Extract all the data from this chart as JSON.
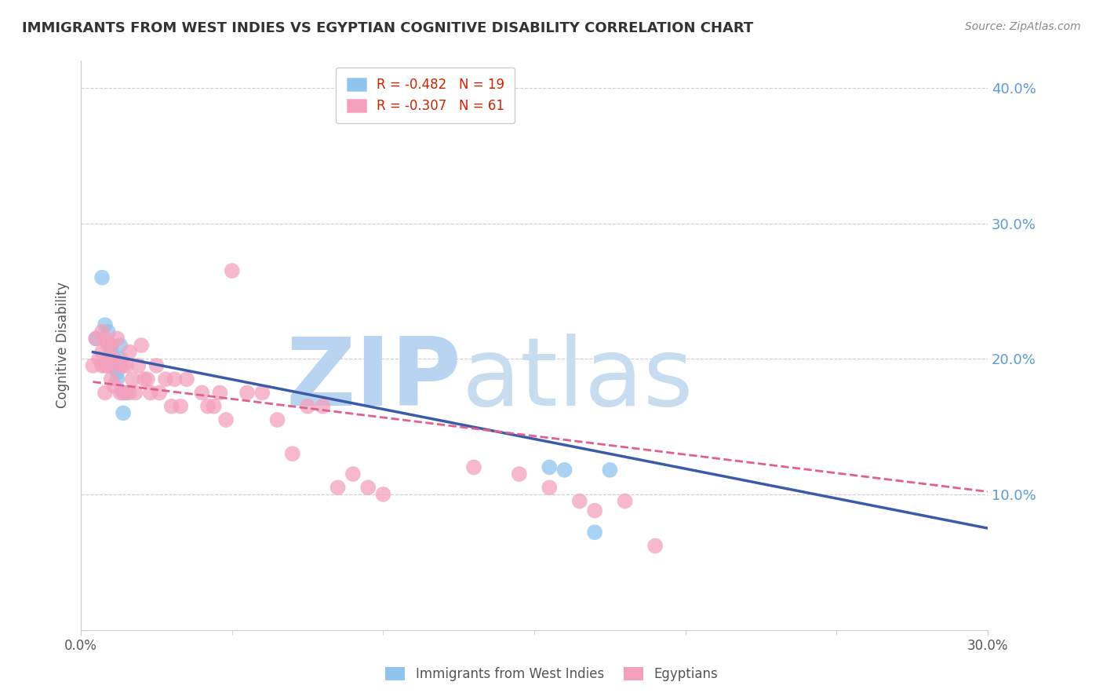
{
  "title": "IMMIGRANTS FROM WEST INDIES VS EGYPTIAN COGNITIVE DISABILITY CORRELATION CHART",
  "source": "Source: ZipAtlas.com",
  "ylabel": "Cognitive Disability",
  "legend_label1": "Immigrants from West Indies",
  "legend_label2": "Egyptians",
  "legend_r1": "R = -0.482",
  "legend_n1": "N = 19",
  "legend_r2": "R = -0.307",
  "legend_n2": "N = 61",
  "xlim": [
    0.0,
    0.3
  ],
  "ylim": [
    0.0,
    0.42
  ],
  "xtick_positions": [
    0.0,
    0.3
  ],
  "xtick_labels": [
    "0.0%",
    "30.0%"
  ],
  "yticks_right": [
    0.1,
    0.2,
    0.3,
    0.4
  ],
  "ytick_right_labels": [
    "10.0%",
    "20.0%",
    "30.0%",
    "40.0%"
  ],
  "color_blue": "#8EC4EE",
  "color_pink": "#F4A0BC",
  "color_blue_line": "#3A5BA8",
  "color_pink_line": "#E06090",
  "watermark_zip": "ZIP",
  "watermark_atlas": "atlas",
  "watermark_color_zip": "#B8D4F0",
  "watermark_color_atlas": "#C8DCF0",
  "background_color": "#FFFFFF",
  "blue_points_x": [
    0.005,
    0.007,
    0.008,
    0.009,
    0.01,
    0.01,
    0.011,
    0.011,
    0.012,
    0.012,
    0.013,
    0.013,
    0.014,
    0.014,
    0.015,
    0.155,
    0.16,
    0.17,
    0.175
  ],
  "blue_points_y": [
    0.215,
    0.26,
    0.225,
    0.22,
    0.21,
    0.205,
    0.2,
    0.195,
    0.19,
    0.185,
    0.21,
    0.2,
    0.175,
    0.16,
    0.175,
    0.12,
    0.118,
    0.072,
    0.118
  ],
  "pink_points_x": [
    0.004,
    0.005,
    0.006,
    0.007,
    0.007,
    0.007,
    0.008,
    0.008,
    0.008,
    0.009,
    0.009,
    0.01,
    0.01,
    0.01,
    0.011,
    0.011,
    0.012,
    0.013,
    0.013,
    0.014,
    0.014,
    0.015,
    0.016,
    0.016,
    0.017,
    0.018,
    0.019,
    0.02,
    0.021,
    0.022,
    0.023,
    0.025,
    0.026,
    0.028,
    0.03,
    0.031,
    0.033,
    0.035,
    0.04,
    0.042,
    0.044,
    0.046,
    0.048,
    0.05,
    0.055,
    0.06,
    0.065,
    0.07,
    0.075,
    0.08,
    0.085,
    0.09,
    0.095,
    0.1,
    0.13,
    0.145,
    0.155,
    0.165,
    0.17,
    0.18,
    0.19
  ],
  "pink_points_y": [
    0.195,
    0.215,
    0.2,
    0.22,
    0.205,
    0.195,
    0.215,
    0.195,
    0.175,
    0.21,
    0.195,
    0.21,
    0.2,
    0.185,
    0.2,
    0.18,
    0.215,
    0.195,
    0.175,
    0.195,
    0.175,
    0.195,
    0.205,
    0.175,
    0.185,
    0.175,
    0.195,
    0.21,
    0.185,
    0.185,
    0.175,
    0.195,
    0.175,
    0.185,
    0.165,
    0.185,
    0.165,
    0.185,
    0.175,
    0.165,
    0.165,
    0.175,
    0.155,
    0.265,
    0.175,
    0.175,
    0.155,
    0.13,
    0.165,
    0.165,
    0.105,
    0.115,
    0.105,
    0.1,
    0.12,
    0.115,
    0.105,
    0.095,
    0.088,
    0.095,
    0.062
  ],
  "blue_line_x": [
    0.004,
    0.3
  ],
  "blue_line_y": [
    0.205,
    0.075
  ],
  "pink_line_x": [
    0.004,
    0.3
  ],
  "pink_line_y": [
    0.183,
    0.102
  ]
}
